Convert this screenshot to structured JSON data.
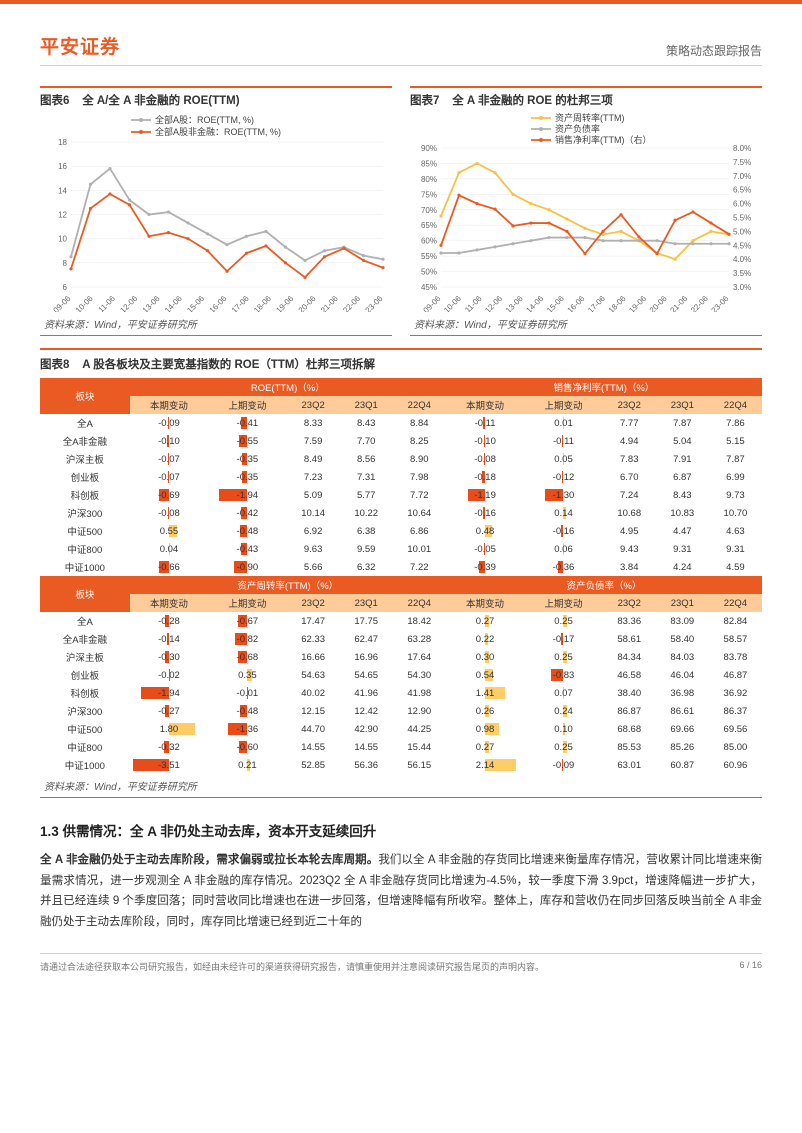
{
  "header": {
    "brand": "平安证券",
    "report_type": "策略动态跟踪报告"
  },
  "chart6": {
    "title_num": "图表6",
    "title": "全 A/全 A 非金融的 ROE(TTM)",
    "type": "line",
    "x_labels": [
      "09-06",
      "10-06",
      "11-06",
      "12-06",
      "13-06",
      "14-06",
      "15-06",
      "16-06",
      "17-06",
      "18-06",
      "19-06",
      "20-06",
      "21-06",
      "22-06",
      "23-06"
    ],
    "ylim": [
      6,
      18
    ],
    "ytick_step": 2,
    "series": [
      {
        "name": "全部A股：ROE(TTM, %)",
        "color": "#b0b0b0",
        "values": [
          8.5,
          14.5,
          15.8,
          13.2,
          12.0,
          12.2,
          11.3,
          10.4,
          9.5,
          10.2,
          10.6,
          9.3,
          8.2,
          9.0,
          9.3,
          8.6,
          8.3
        ]
      },
      {
        "name": "全部A股非金融：ROE(TTM, %)",
        "color": "#ea5b24",
        "values": [
          7.5,
          12.5,
          13.7,
          12.8,
          10.2,
          10.5,
          10.0,
          9.0,
          7.3,
          8.8,
          9.4,
          8.0,
          6.8,
          8.5,
          9.2,
          8.2,
          7.6
        ]
      }
    ],
    "n_points": 17,
    "background_color": "#ffffff",
    "grid_color": "#e8e8e8",
    "label_fontsize": 9,
    "source": "资料来源：Wind，平安证券研究所"
  },
  "chart7": {
    "title_num": "图表7",
    "title": "全 A 非金融的 ROE 的杜邦三项",
    "type": "line-dual-axis",
    "x_labels": [
      "09-06",
      "10-06",
      "11-06",
      "12-06",
      "13-06",
      "14-06",
      "15-06",
      "16-06",
      "17-06",
      "18-06",
      "19-06",
      "20-06",
      "21-06",
      "22-06",
      "23-06"
    ],
    "ylim_left": [
      45,
      90
    ],
    "ytick_left": 5,
    "ylim_right": [
      3.0,
      8.0
    ],
    "ytick_right": 0.5,
    "series_left": [
      {
        "name": "资产周转率(TTM)",
        "color": "#f5c242",
        "values": [
          68,
          82,
          85,
          82,
          75,
          72,
          70,
          67,
          64,
          62,
          63,
          60,
          56,
          54,
          60,
          63,
          62
        ]
      },
      {
        "name": "资产负债率",
        "color": "#b0b0b0",
        "values": [
          56,
          56,
          57,
          58,
          59,
          60,
          61,
          61,
          61,
          60,
          60,
          60,
          60,
          59,
          59,
          59,
          59
        ]
      }
    ],
    "series_right": [
      {
        "name": "销售净利率(TTM)（右）",
        "color": "#ea5b24",
        "values": [
          4.5,
          6.3,
          6.0,
          5.8,
          5.2,
          5.3,
          5.3,
          5.0,
          4.2,
          5.0,
          5.6,
          4.8,
          4.2,
          5.4,
          5.7,
          5.3,
          4.9
        ]
      }
    ],
    "n_points": 17,
    "background_color": "#ffffff",
    "grid_color": "#e8e8e8",
    "source": "资料来源：Wind，平安证券研究所"
  },
  "table8": {
    "title_num": "图表8",
    "title": "A 股各板块及主要宽基指数的 ROE（TTM）杜邦三项拆解",
    "group1": {
      "left_header": "板块",
      "metric1": "ROE(TTM)（%）",
      "metric2": "销售净利率(TTM)（%）",
      "cols": [
        "本期变动",
        "上期变动",
        "23Q2",
        "23Q1",
        "22Q4",
        "本期变动",
        "上期变动",
        "23Q2",
        "23Q1",
        "22Q4"
      ],
      "rows": [
        {
          "label": "全A",
          "v": [
            -0.09,
            -0.41,
            8.33,
            8.43,
            8.84,
            -0.11,
            0.01,
            7.77,
            7.87,
            7.86
          ]
        },
        {
          "label": "全A非金融",
          "v": [
            -0.1,
            -0.55,
            7.59,
            7.7,
            8.25,
            -0.1,
            -0.11,
            4.94,
            5.04,
            5.15
          ]
        },
        {
          "label": "沪深主板",
          "v": [
            -0.07,
            -0.35,
            8.49,
            8.56,
            8.9,
            -0.08,
            0.05,
            7.83,
            7.91,
            7.87
          ]
        },
        {
          "label": "创业板",
          "v": [
            -0.07,
            -0.35,
            7.23,
            7.31,
            7.98,
            -0.18,
            -0.12,
            6.7,
            6.87,
            6.99
          ]
        },
        {
          "label": "科创板",
          "v": [
            -0.69,
            -1.94,
            5.09,
            5.77,
            7.72,
            -1.19,
            -1.3,
            7.24,
            8.43,
            9.73
          ]
        },
        {
          "label": "沪深300",
          "v": [
            -0.08,
            -0.42,
            10.14,
            10.22,
            10.64,
            -0.16,
            0.14,
            10.68,
            10.83,
            10.7
          ]
        },
        {
          "label": "中证500",
          "v": [
            0.55,
            -0.48,
            6.92,
            6.38,
            6.86,
            0.48,
            -0.16,
            4.95,
            4.47,
            4.63
          ]
        },
        {
          "label": "中证800",
          "v": [
            0.04,
            -0.43,
            9.63,
            9.59,
            10.01,
            -0.05,
            0.06,
            9.43,
            9.31,
            9.31
          ]
        },
        {
          "label": "中证1000",
          "v": [
            -0.66,
            -0.9,
            5.66,
            6.32,
            7.22,
            -0.39,
            -0.36,
            3.84,
            4.24,
            4.59
          ]
        }
      ]
    },
    "group2": {
      "left_header": "板块",
      "metric1": "资产周转率(TTM)（%）",
      "metric2": "资产负债率（%）",
      "cols": [
        "本期变动",
        "上期变动",
        "23Q2",
        "23Q1",
        "22Q4",
        "本期变动",
        "上期变动",
        "23Q2",
        "23Q1",
        "22Q4"
      ],
      "rows": [
        {
          "label": "全A",
          "v": [
            -0.28,
            -0.67,
            17.47,
            17.75,
            18.42,
            0.27,
            0.25,
            83.36,
            83.09,
            82.84
          ]
        },
        {
          "label": "全A非金融",
          "v": [
            -0.14,
            -0.82,
            62.33,
            62.47,
            63.28,
            0.22,
            -0.17,
            58.61,
            58.4,
            58.57
          ]
        },
        {
          "label": "沪深主板",
          "v": [
            -0.3,
            -0.68,
            16.66,
            16.96,
            17.64,
            0.3,
            0.25,
            84.34,
            84.03,
            83.78
          ]
        },
        {
          "label": "创业板",
          "v": [
            -0.02,
            0.35,
            54.63,
            54.65,
            54.3,
            0.54,
            -0.83,
            46.58,
            46.04,
            46.87
          ]
        },
        {
          "label": "科创板",
          "v": [
            -1.94,
            -0.01,
            40.02,
            41.96,
            41.98,
            1.41,
            0.07,
            38.4,
            36.98,
            36.92
          ]
        },
        {
          "label": "沪深300",
          "v": [
            -0.27,
            -0.48,
            12.15,
            12.42,
            12.9,
            0.26,
            0.24,
            86.87,
            86.61,
            86.37
          ]
        },
        {
          "label": "中证500",
          "v": [
            1.8,
            -1.36,
            44.7,
            42.9,
            44.25,
            0.98,
            0.1,
            68.68,
            69.66,
            69.56
          ]
        },
        {
          "label": "中证800",
          "v": [
            -0.32,
            -0.6,
            14.55,
            14.55,
            15.44,
            0.27,
            0.25,
            85.53,
            85.26,
            85.0
          ]
        },
        {
          "label": "中证1000",
          "v": [
            -3.51,
            0.21,
            52.85,
            56.36,
            56.15,
            2.14,
            -0.09,
            63.01,
            60.87,
            60.96
          ]
        }
      ]
    },
    "bar_pos_color": "#ffcc66",
    "bar_neg_color": "#e84c1a",
    "bar_max": 2.5,
    "header_bg": "#ea5b24",
    "subheader_bg": "#ffcc99",
    "source": "资料来源：Wind，平安证券研究所"
  },
  "section": {
    "heading": "1.3 供需情况：全 A 非仍处主动去库，资本开支延续回升",
    "para_bold": "全 A 非金融仍处于主动去库阶段，需求偏弱或拉长本轮去库周期。",
    "para_rest": "我们以全 A 非金融的存货同比增速来衡量库存情况，营收累计同比增速来衡量需求情况，进一步观测全 A 非金融的库存情况。2023Q2 全 A 非金融存货同比增速为-4.5%，较一季度下滑 3.9pct，增速降幅进一步扩大，并且已经连续 9 个季度回落；同时营收同比增速也在进一步回落，但增速降幅有所收窄。整体上，库存和营收仍在同步回落反映当前全 A 非金融仍处于主动去库阶段，同时，库存同比增速已经到近二十年的"
  },
  "footer": {
    "disclaimer": "请通过合法途径获取本公司研究报告，如经由未经许可的渠道获得研究报告，请慎重使用并注意阅读研究报告尾页的声明内容。",
    "page": "6 / 16"
  }
}
